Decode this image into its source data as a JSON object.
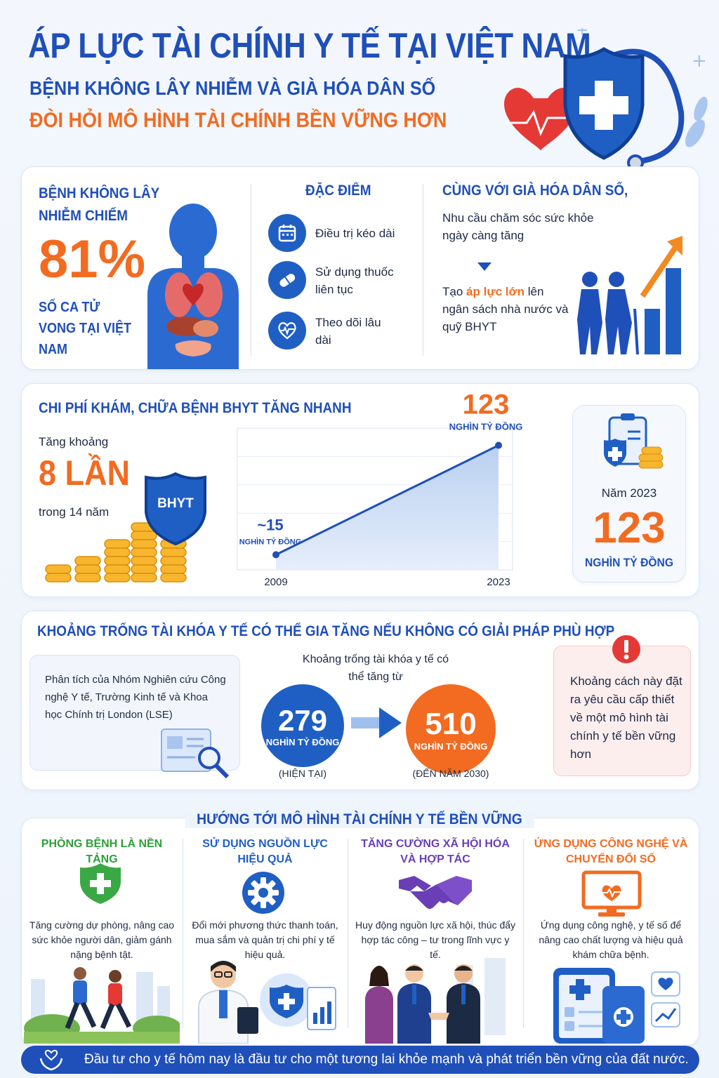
{
  "header": {
    "title": "ÁP LỰC TÀI CHÍNH Y TẾ TẠI VIỆT NAM",
    "subtitle_1": "BỆNH KHÔNG LÂY NHIỄM VÀ GIÀ HÓA DÂN SỐ",
    "subtitle_2": "ĐÒI HỎI MÔ HÌNH TÀI CHÍNH BỀN VỮNG HƠN"
  },
  "section1": {
    "ncd_heading": "BỆNH KHÔNG LÂY NHIỄM CHIẾM",
    "ncd_percent": "81%",
    "ncd_caption": "SỐ CA TỬ VONG TẠI VIỆT NAM",
    "features_heading": "ĐẶC ĐIỂM",
    "features": [
      {
        "icon": "calendar-icon",
        "label": "Điều trị kéo dài"
      },
      {
        "icon": "pill-icon",
        "label": "Sử dụng thuốc liên tục"
      },
      {
        "icon": "heartbeat-icon",
        "label": "Theo dõi lâu dài"
      }
    ],
    "aging_heading": "CÙNG VỚI GIÀ HÓA DÂN SỐ,",
    "aging_text": "Nhu cầu chăm sóc sức khỏe ngày càng tăng",
    "pressure_prefix": "Tạo ",
    "pressure_highlight": "áp lực lớn",
    "pressure_suffix": " lên ngân sách nhà nước và quỹ BHYT"
  },
  "section2": {
    "heading": "CHI PHÍ KHÁM, CHỮA BỆNH BHYT TĂNG NHANH",
    "increase_label": "Tăng khoảng",
    "increase_value": "8 LẦN",
    "increase_period": "trong 14 năm",
    "shield_label": "BHYT",
    "side_year": "Năm 2023",
    "side_value": "123",
    "side_unit": "NGHÌN TỶ ĐỒNG"
  },
  "chart_data": {
    "type": "area",
    "x": [
      "2009",
      "2023"
    ],
    "series": [
      {
        "values": [
          15,
          123
        ]
      }
    ],
    "point_labels": [
      {
        "value": "~15",
        "unit": "NGHÌN TỶ ĐỒNG"
      },
      {
        "value": "123",
        "unit": "NGHÌN TỶ ĐỒNG"
      }
    ],
    "ylim": [
      0,
      140
    ],
    "grid": true
  },
  "section3": {
    "heading": "KHOẢNG TRỐNG TÀI KHÓA Y TẾ CÓ THỂ GIA TĂNG NẾU KHÔNG CÓ GIẢI PHÁP PHÙ HỢP",
    "analysis_text": "Phân tích của Nhóm Nghiên cứu Công nghệ Y tế, Trường Kinh tế và Khoa học Chính trị London (LSE)",
    "gap_label": "Khoảng trống tài khóa y tế có thể tăng từ",
    "current_value": "279",
    "current_unit": "NGHÌN TỶ ĐỒNG",
    "current_caption": "(HIỆN TẠI)",
    "future_value": "510",
    "future_unit": "NGHÌN TỶ ĐỒNG",
    "future_caption": "(ĐẾN NĂM 2030)",
    "warning_text": "Khoảng cách này đặt ra yêu cầu cấp thiết về một mô hình tài chính y tế bền vững hơn"
  },
  "section4": {
    "heading": "HƯỚNG TỚI MÔ HÌNH TÀI CHÍNH Y TẾ BỀN VỮNG",
    "pillars": [
      {
        "title": "PHÒNG BỆNH LÀ NỀN TẢNG",
        "color": "#2f9e3a",
        "icon": "shield-plus-icon",
        "text": "Tăng cường dự phòng, nâng cao sức khỏe người dân, giảm gánh nặng bệnh tật."
      },
      {
        "title": "SỬ DỤNG NGUỒN LỰC HIỆU QUẢ",
        "color": "#1f5fc4",
        "icon": "gear-icon",
        "text": "Đổi mới phương thức thanh toán, mua sắm và quản trị chi phí y tế hiệu quả."
      },
      {
        "title": "TĂNG CƯỜNG XÃ HỘI HÓA VÀ HỢP TÁC",
        "color": "#6a3fb5",
        "icon": "handshake-icon",
        "text": "Huy động nguồn lực xã hội, thúc đẩy hợp tác công – tư trong lĩnh vực y tế."
      },
      {
        "title": "ỨNG DỤNG CÔNG NGHỆ VÀ CHUYỂN ĐỔI SỐ",
        "color": "#f26b21",
        "icon": "monitor-heartbeat-icon",
        "text": "Ứng dụng công nghệ, y tế số để nâng cao chất lượng và hiệu quả khám chữa bệnh."
      }
    ]
  },
  "footer": {
    "banner": "Đầu tư cho y tế hôm nay là đầu tư cho một tương lai khỏe mạnh và phát triển bền vững của đất nước."
  }
}
